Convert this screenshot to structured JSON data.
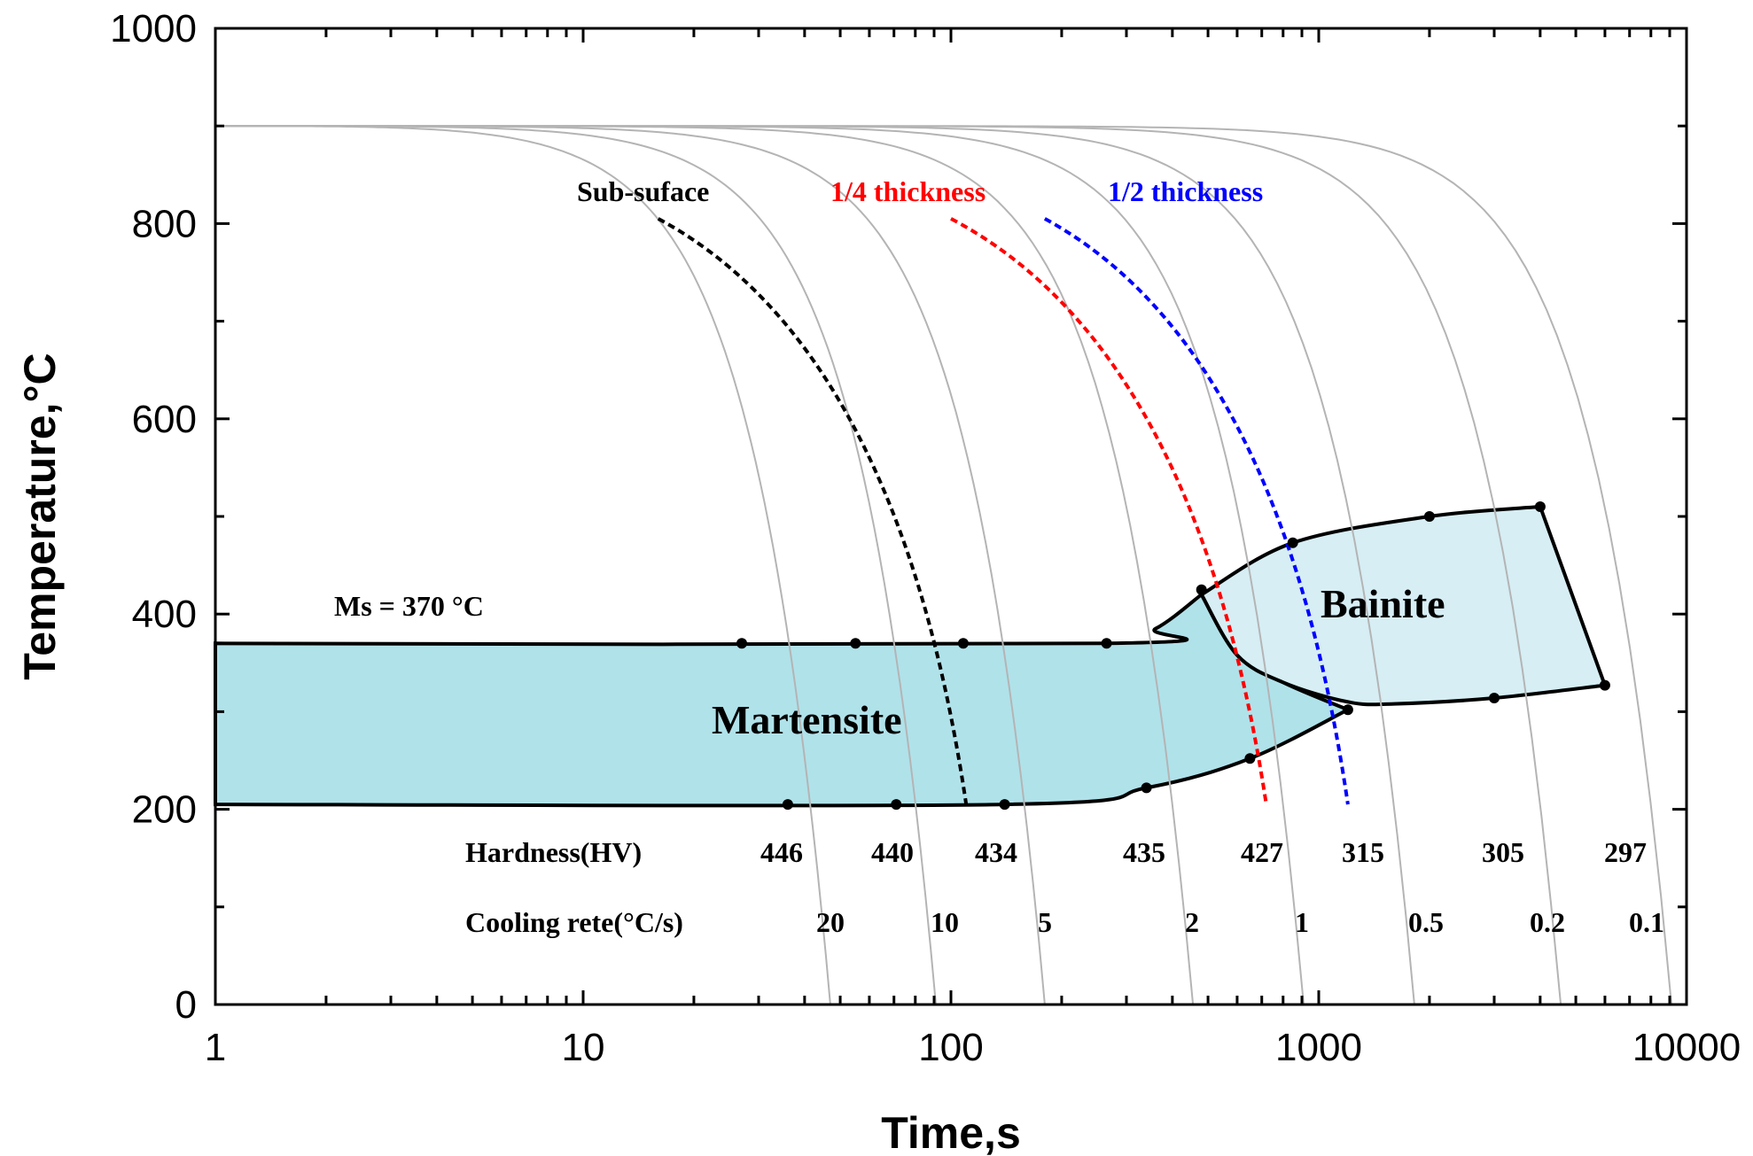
{
  "chart_data": {
    "type": "line",
    "title": "",
    "xlabel": "Time,s",
    "ylabel": "Temperature,°C",
    "xscale": "log",
    "xlim": [
      1,
      10000
    ],
    "ylim": [
      0,
      1000
    ],
    "x_tick_labels": [
      "1",
      "10",
      "100",
      "1000",
      "10000"
    ],
    "x_tick_values": [
      1,
      10,
      100,
      1000,
      10000
    ],
    "y_tick_labels": [
      "0",
      "200",
      "400",
      "600",
      "800",
      "1000"
    ],
    "y_tick_values": [
      0,
      200,
      400,
      600,
      800,
      1000
    ],
    "start_temperature": 900,
    "cooling_curves": [
      {
        "name": "cooling-curve-20",
        "rate_label": "20",
        "end_time": 47
      },
      {
        "name": "cooling-curve-10",
        "rate_label": "10",
        "end_time": 91
      },
      {
        "name": "cooling-curve-5",
        "rate_label": "5",
        "end_time": 180
      },
      {
        "name": "cooling-curve-2",
        "rate_label": "2",
        "end_time": 455
      },
      {
        "name": "cooling-curve-1",
        "rate_label": "1",
        "end_time": 910
      },
      {
        "name": "cooling-curve-0.5",
        "rate_label": "0.5",
        "end_time": 1820
      },
      {
        "name": "cooling-curve-0.2",
        "rate_label": "0.2",
        "end_time": 4550
      },
      {
        "name": "cooling-curve-0.1",
        "rate_label": "0.1",
        "end_time": 9100
      }
    ],
    "dashed_curves": [
      {
        "name": "Sub-suface",
        "color": "#000000",
        "start": [
          16,
          805
        ],
        "end": [
          110,
          205
        ]
      },
      {
        "name": "1/4 thickness",
        "color": "#ff0000",
        "start": [
          100,
          805
        ],
        "end": [
          720,
          205
        ]
      },
      {
        "name": "1/2 thickness",
        "color": "#0000ff",
        "start": [
          180,
          805
        ],
        "end": [
          1200,
          205
        ]
      }
    ],
    "regions": [
      {
        "name": "Martensite",
        "color": "#b0e2ea",
        "upper": [
          [
            1,
            370
          ],
          [
            265,
            370
          ],
          [
            360,
            385
          ],
          [
            480,
            420
          ]
        ],
        "lower": [
          [
            1,
            205
          ],
          [
            140,
            205
          ],
          [
            340,
            222
          ],
          [
            650,
            252
          ],
          [
            1200,
            302
          ]
        ]
      },
      {
        "name": "Bainite",
        "color": "#d6eef4",
        "upper": [
          [
            480,
            420
          ],
          [
            850,
            473
          ],
          [
            2000,
            500
          ],
          [
            4000,
            510
          ]
        ],
        "right": [
          [
            4000,
            510
          ],
          [
            6000,
            327
          ]
        ],
        "lower": [
          [
            6000,
            327
          ],
          [
            3000,
            314
          ],
          [
            1600,
            308
          ],
          [
            1200,
            310
          ],
          [
            800,
            330
          ],
          [
            600,
            358
          ],
          [
            480,
            420
          ]
        ]
      }
    ],
    "marked_points": [
      [
        27,
        370
      ],
      [
        55,
        370
      ],
      [
        108,
        370
      ],
      [
        265,
        370
      ],
      [
        36,
        205
      ],
      [
        71,
        205
      ],
      [
        140,
        205
      ],
      [
        340,
        222
      ],
      [
        650,
        252
      ],
      [
        1200,
        302
      ],
      [
        480,
        425
      ],
      [
        850,
        473
      ],
      [
        2000,
        500
      ],
      [
        4000,
        510
      ],
      [
        6000,
        327
      ],
      [
        3000,
        314
      ]
    ],
    "annotations": {
      "ms": "Ms = 370 °C",
      "martensite": "Martensite",
      "bainite": "Bainite",
      "subsurface": "Sub-suface",
      "quarter": "1/4 thickness",
      "half": "1/2 thickness",
      "hardness_label": "Hardness(HV)",
      "cooling_label": "Cooling rete(°C/s)"
    },
    "hardness_values": [
      "446",
      "440",
      "434",
      "435",
      "427",
      "315",
      "305",
      "297"
    ],
    "cooling_rate_values": [
      "20",
      "10",
      "5",
      "2",
      "1",
      "0.5",
      "0.2",
      "0.1"
    ]
  },
  "colors": {
    "martensite_fill": "#b0e2ea",
    "bainite_fill": "#d6eef4",
    "curve_gray": "#b4b4b4",
    "sub_surface": "#000000",
    "quarter_thickness": "#ff0000",
    "half_thickness": "#0000ff"
  }
}
